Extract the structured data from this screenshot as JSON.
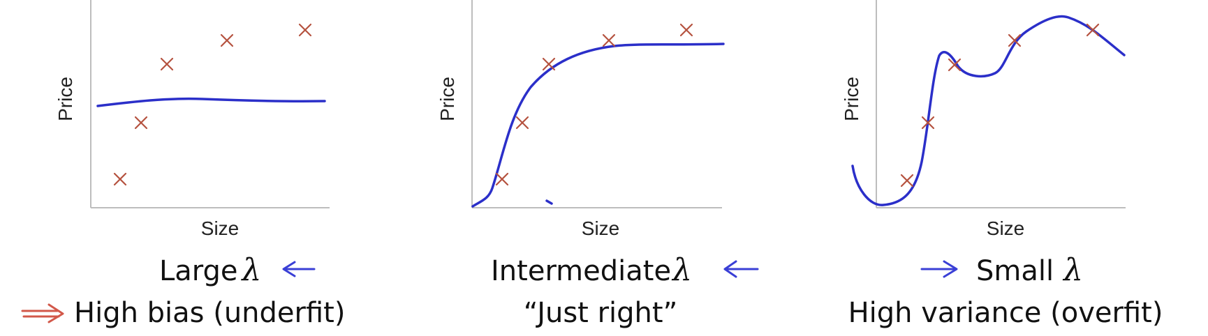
{
  "panels": [
    {
      "id": "large",
      "xlabel": "Size",
      "ylabel": "Price",
      "caption_word": "Large",
      "caption_symbol": "λ",
      "subcaption": "High bias (underfit)",
      "arrow_color": "#3a3fd6",
      "sub_arrow_color": "#d2584a"
    },
    {
      "id": "intermediate",
      "xlabel": "Size",
      "ylabel": "Price",
      "caption_word": "Intermediate",
      "caption_symbol": "λ",
      "subcaption": "“Just right”",
      "arrow_color": "#3a3fd6"
    },
    {
      "id": "small",
      "xlabel": "Size",
      "ylabel": "Price",
      "caption_word": "Small",
      "caption_symbol": "λ",
      "subcaption": "High variance (overfit)",
      "arrow_color": "#3a3fd6"
    }
  ],
  "colors": {
    "data_point": "#b5523f",
    "fit_curve": "#2b2fc9",
    "axis": "#bdbdbd"
  }
}
